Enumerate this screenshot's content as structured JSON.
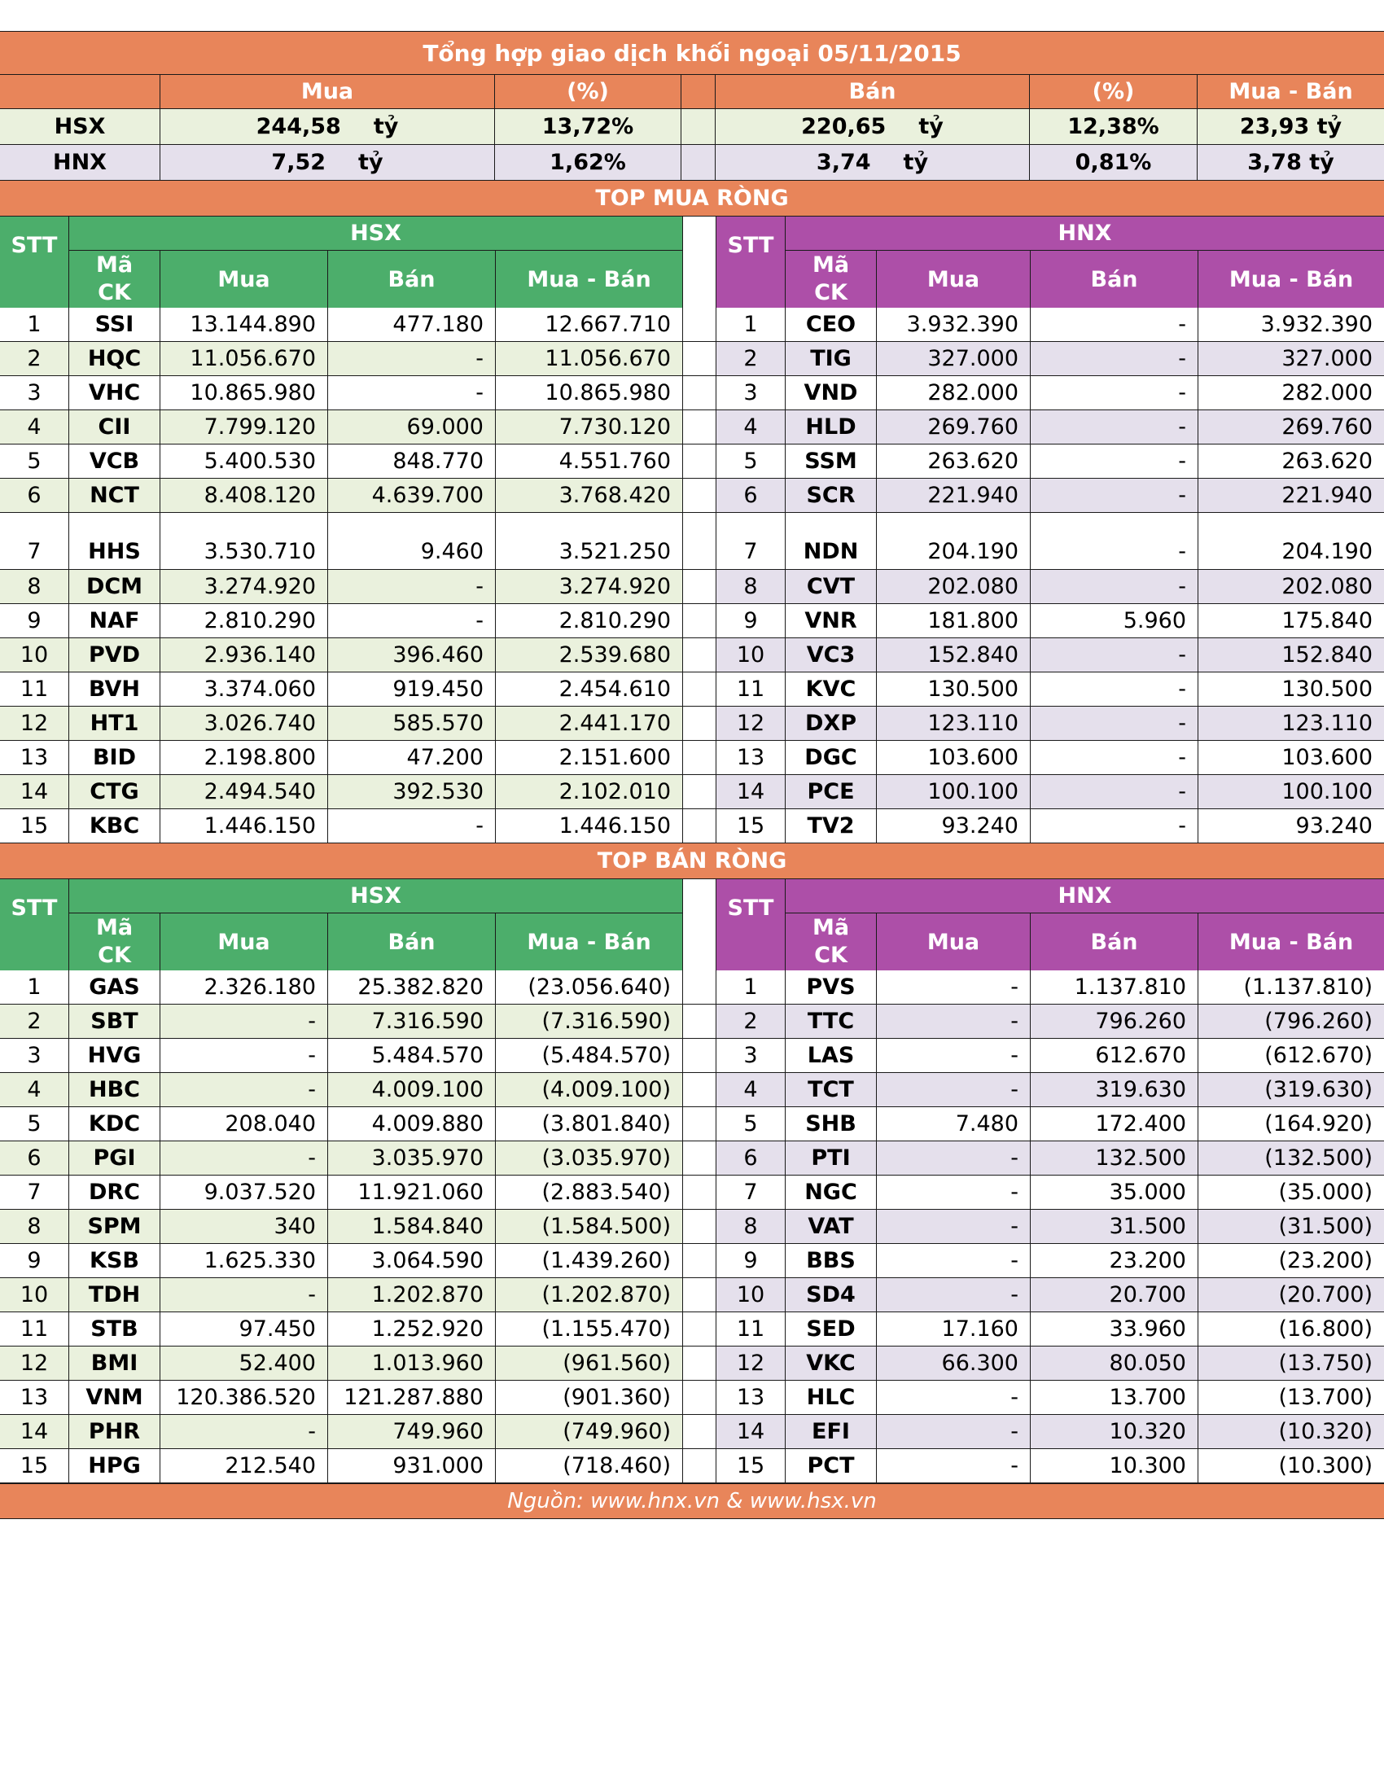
{
  "title": "Tổng hợp giao dịch khối ngoại 05/11/2015",
  "summary": {
    "headers": {
      "mua": "Mua",
      "pct1": "(%)",
      "ban": "Bán",
      "pct2": "(%)",
      "net": "Mua - Bán"
    },
    "unit": "tỷ",
    "rows": [
      {
        "exchange": "HSX",
        "mua": "244,58",
        "mua_pct": "13,72%",
        "ban": "220,65",
        "ban_pct": "12,38%",
        "net": "23,93 tỷ"
      },
      {
        "exchange": "HNX",
        "mua": "7,52",
        "mua_pct": "1,62%",
        "ban": "3,74",
        "ban_pct": "0,81%",
        "net": "3,78 tỷ"
      }
    ]
  },
  "columns": {
    "stt": "STT",
    "ma_line1": "Mã",
    "ma_line2": "CK",
    "mua": "Mua",
    "ban": "Bán",
    "net": "Mua - Bán"
  },
  "exchanges": {
    "hsx": "HSX",
    "hnx": "HNX"
  },
  "top_buy": {
    "label": "TOP MUA RÒNG",
    "hsx": [
      {
        "stt": "1",
        "code": "SSI",
        "mua": "13.144.890",
        "ban": "477.180",
        "net": "12.667.710"
      },
      {
        "stt": "2",
        "code": "HQC",
        "mua": "11.056.670",
        "ban": "-",
        "net": "11.056.670"
      },
      {
        "stt": "3",
        "code": "VHC",
        "mua": "10.865.980",
        "ban": "-",
        "net": "10.865.980"
      },
      {
        "stt": "4",
        "code": "CII",
        "mua": "7.799.120",
        "ban": "69.000",
        "net": "7.730.120"
      },
      {
        "stt": "5",
        "code": "VCB",
        "mua": "5.400.530",
        "ban": "848.770",
        "net": "4.551.760"
      },
      {
        "stt": "6",
        "code": "NCT",
        "mua": "8.408.120",
        "ban": "4.639.700",
        "net": "3.768.420"
      },
      {
        "stt": "7",
        "code": "HHS",
        "mua": "3.530.710",
        "ban": "9.460",
        "net": "3.521.250"
      },
      {
        "stt": "8",
        "code": "DCM",
        "mua": "3.274.920",
        "ban": "-",
        "net": "3.274.920"
      },
      {
        "stt": "9",
        "code": "NAF",
        "mua": "2.810.290",
        "ban": "-",
        "net": "2.810.290"
      },
      {
        "stt": "10",
        "code": "PVD",
        "mua": "2.936.140",
        "ban": "396.460",
        "net": "2.539.680"
      },
      {
        "stt": "11",
        "code": "BVH",
        "mua": "3.374.060",
        "ban": "919.450",
        "net": "2.454.610"
      },
      {
        "stt": "12",
        "code": "HT1",
        "mua": "3.026.740",
        "ban": "585.570",
        "net": "2.441.170"
      },
      {
        "stt": "13",
        "code": "BID",
        "mua": "2.198.800",
        "ban": "47.200",
        "net": "2.151.600"
      },
      {
        "stt": "14",
        "code": "CTG",
        "mua": "2.494.540",
        "ban": "392.530",
        "net": "2.102.010"
      },
      {
        "stt": "15",
        "code": "KBC",
        "mua": "1.446.150",
        "ban": "-",
        "net": "1.446.150"
      }
    ],
    "hnx": [
      {
        "stt": "1",
        "code": "CEO",
        "mua": "3.932.390",
        "ban": "-",
        "net": "3.932.390"
      },
      {
        "stt": "2",
        "code": "TIG",
        "mua": "327.000",
        "ban": "-",
        "net": "327.000"
      },
      {
        "stt": "3",
        "code": "VND",
        "mua": "282.000",
        "ban": "-",
        "net": "282.000"
      },
      {
        "stt": "4",
        "code": "HLD",
        "mua": "269.760",
        "ban": "-",
        "net": "269.760"
      },
      {
        "stt": "5",
        "code": "SSM",
        "mua": "263.620",
        "ban": "-",
        "net": "263.620"
      },
      {
        "stt": "6",
        "code": "SCR",
        "mua": "221.940",
        "ban": "-",
        "net": "221.940"
      },
      {
        "stt": "7",
        "code": "NDN",
        "mua": "204.190",
        "ban": "-",
        "net": "204.190"
      },
      {
        "stt": "8",
        "code": "CVT",
        "mua": "202.080",
        "ban": "-",
        "net": "202.080"
      },
      {
        "stt": "9",
        "code": "VNR",
        "mua": "181.800",
        "ban": "5.960",
        "net": "175.840"
      },
      {
        "stt": "10",
        "code": "VC3",
        "mua": "152.840",
        "ban": "-",
        "net": "152.840"
      },
      {
        "stt": "11",
        "code": "KVC",
        "mua": "130.500",
        "ban": "-",
        "net": "130.500"
      },
      {
        "stt": "12",
        "code": "DXP",
        "mua": "123.110",
        "ban": "-",
        "net": "123.110"
      },
      {
        "stt": "13",
        "code": "DGC",
        "mua": "103.600",
        "ban": "-",
        "net": "103.600"
      },
      {
        "stt": "14",
        "code": "PCE",
        "mua": "100.100",
        "ban": "-",
        "net": "100.100"
      },
      {
        "stt": "15",
        "code": "TV2",
        "mua": "93.240",
        "ban": "-",
        "net": "93.240"
      }
    ]
  },
  "top_sell": {
    "label": "TOP BÁN RÒNG",
    "hsx": [
      {
        "stt": "1",
        "code": "GAS",
        "mua": "2.326.180",
        "ban": "25.382.820",
        "net": "(23.056.640)"
      },
      {
        "stt": "2",
        "code": "SBT",
        "mua": "-",
        "ban": "7.316.590",
        "net": "(7.316.590)"
      },
      {
        "stt": "3",
        "code": "HVG",
        "mua": "-",
        "ban": "5.484.570",
        "net": "(5.484.570)"
      },
      {
        "stt": "4",
        "code": "HBC",
        "mua": "-",
        "ban": "4.009.100",
        "net": "(4.009.100)"
      },
      {
        "stt": "5",
        "code": "KDC",
        "mua": "208.040",
        "ban": "4.009.880",
        "net": "(3.801.840)"
      },
      {
        "stt": "6",
        "code": "PGI",
        "mua": "-",
        "ban": "3.035.970",
        "net": "(3.035.970)"
      },
      {
        "stt": "7",
        "code": "DRC",
        "mua": "9.037.520",
        "ban": "11.921.060",
        "net": "(2.883.540)"
      },
      {
        "stt": "8",
        "code": "SPM",
        "mua": "340",
        "ban": "1.584.840",
        "net": "(1.584.500)"
      },
      {
        "stt": "9",
        "code": "KSB",
        "mua": "1.625.330",
        "ban": "3.064.590",
        "net": "(1.439.260)"
      },
      {
        "stt": "10",
        "code": "TDH",
        "mua": "-",
        "ban": "1.202.870",
        "net": "(1.202.870)"
      },
      {
        "stt": "11",
        "code": "STB",
        "mua": "97.450",
        "ban": "1.252.920",
        "net": "(1.155.470)"
      },
      {
        "stt": "12",
        "code": "BMI",
        "mua": "52.400",
        "ban": "1.013.960",
        "net": "(961.560)"
      },
      {
        "stt": "13",
        "code": "VNM",
        "mua": "120.386.520",
        "ban": "121.287.880",
        "net": "(901.360)"
      },
      {
        "stt": "14",
        "code": "PHR",
        "mua": "-",
        "ban": "749.960",
        "net": "(749.960)"
      },
      {
        "stt": "15",
        "code": "HPG",
        "mua": "212.540",
        "ban": "931.000",
        "net": "(718.460)"
      }
    ],
    "hnx": [
      {
        "stt": "1",
        "code": "PVS",
        "mua": "-",
        "ban": "1.137.810",
        "net": "(1.137.810)"
      },
      {
        "stt": "2",
        "code": "TTC",
        "mua": "-",
        "ban": "796.260",
        "net": "(796.260)"
      },
      {
        "stt": "3",
        "code": "LAS",
        "mua": "-",
        "ban": "612.670",
        "net": "(612.670)"
      },
      {
        "stt": "4",
        "code": "TCT",
        "mua": "-",
        "ban": "319.630",
        "net": "(319.630)"
      },
      {
        "stt": "5",
        "code": "SHB",
        "mua": "7.480",
        "ban": "172.400",
        "net": "(164.920)"
      },
      {
        "stt": "6",
        "code": "PTI",
        "mua": "-",
        "ban": "132.500",
        "net": "(132.500)"
      },
      {
        "stt": "7",
        "code": "NGC",
        "mua": "-",
        "ban": "35.000",
        "net": "(35.000)"
      },
      {
        "stt": "8",
        "code": "VAT",
        "mua": "-",
        "ban": "31.500",
        "net": "(31.500)"
      },
      {
        "stt": "9",
        "code": "BBS",
        "mua": "-",
        "ban": "23.200",
        "net": "(23.200)"
      },
      {
        "stt": "10",
        "code": "SD4",
        "mua": "-",
        "ban": "20.700",
        "net": "(20.700)"
      },
      {
        "stt": "11",
        "code": "SED",
        "mua": "17.160",
        "ban": "33.960",
        "net": "(16.800)"
      },
      {
        "stt": "12",
        "code": "VKC",
        "mua": "66.300",
        "ban": "80.050",
        "net": "(13.750)"
      },
      {
        "stt": "13",
        "code": "HLC",
        "mua": "-",
        "ban": "13.700",
        "net": "(13.700)"
      },
      {
        "stt": "14",
        "code": "EFI",
        "mua": "-",
        "ban": "10.320",
        "net": "(10.320)"
      },
      {
        "stt": "15",
        "code": "PCT",
        "mua": "-",
        "ban": "10.300",
        "net": "(10.300)"
      }
    ]
  },
  "footer": "Nguồn: www.hnx.vn    &    www.hsx.vn",
  "colors": {
    "orange": "#e8855a",
    "green": "#4cae6b",
    "purple": "#ad4fa8",
    "hsx_row": "#eaf1dd",
    "hnx_row": "#e5e0ec"
  }
}
